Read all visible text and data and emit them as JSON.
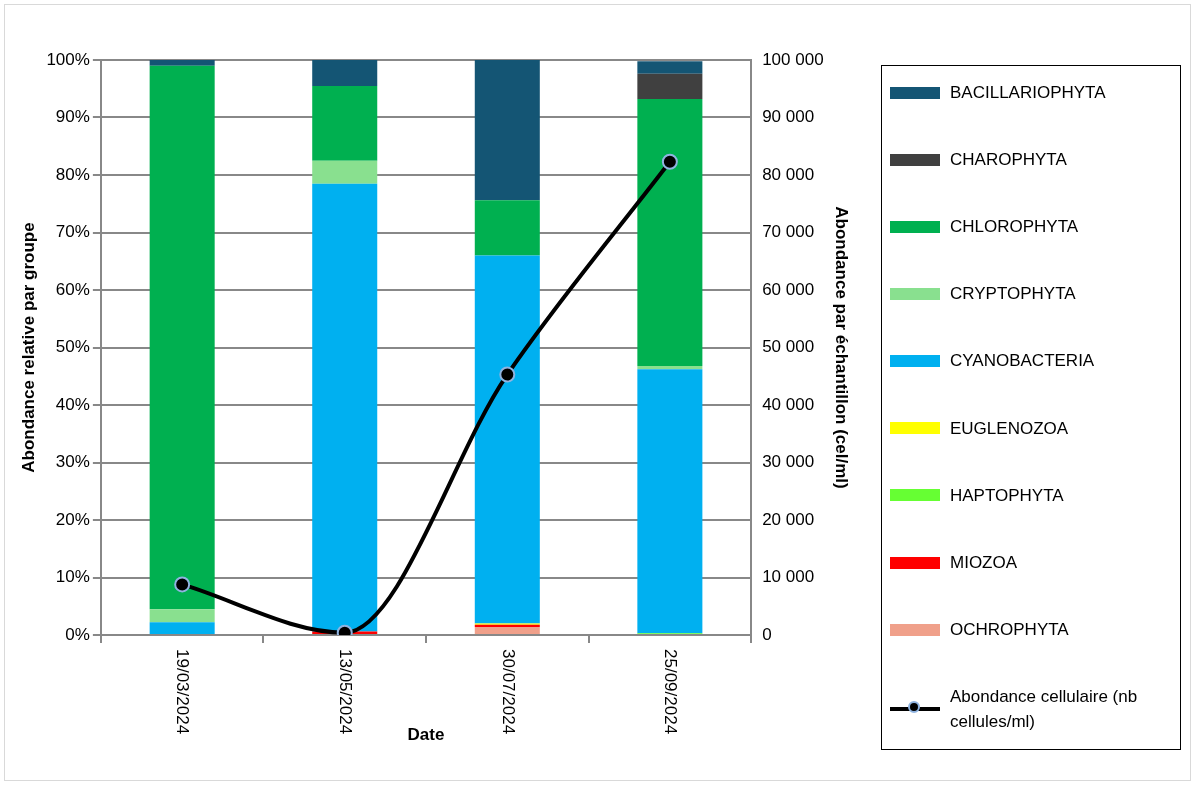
{
  "chart_data": {
    "type": "bar",
    "stacked": true,
    "xlabel": "Date",
    "ylabel": "Abondance relative par groupe",
    "y2label": "Abondance par échantillon (cel/ml)",
    "categories": [
      "19/03/2024",
      "13/05/2024",
      "30/07/2024",
      "25/09/2024"
    ],
    "series": [
      {
        "name": "OCHROPHYTA",
        "color": "#f0a08a",
        "values": [
          0,
          0,
          1.4,
          null
        ]
      },
      {
        "name": "MIOZOA",
        "color": "#ff0000",
        "values": [
          0,
          0.6,
          0.4,
          0
        ]
      },
      {
        "name": "HAPTOPHYTA",
        "color": "#66ff33",
        "values": [
          0,
          0,
          0,
          0.3
        ]
      },
      {
        "name": "EUGLENOZOA",
        "color": "#ffff00",
        "values": [
          0,
          0,
          0.2,
          0
        ]
      },
      {
        "name": "CYANOBACTERIA",
        "color": "#00b0f0",
        "values": [
          2.2,
          77.9,
          64,
          45.9
        ]
      },
      {
        "name": "CRYPTOPHYTA",
        "color": "#89e08f",
        "values": [
          2.3,
          4,
          0,
          0.6
        ]
      },
      {
        "name": "CHLOROPHYTA",
        "color": "#00b050",
        "values": [
          94.5,
          13,
          9.6,
          46.4
        ]
      },
      {
        "name": "CHAROPHYTA",
        "color": "#404040",
        "values": [
          0,
          0,
          0,
          4.4
        ]
      },
      {
        "name": "BACILLARIOPHYTA",
        "color": "#145574",
        "values": [
          1,
          4.5,
          24.4,
          2.2
        ]
      },
      {
        "name": "Abondance cellulaire (nb cellules/ml)",
        "type": "line",
        "axis": "y2",
        "color": "#000000",
        "values": [
          8800,
          400,
          45300,
          82300
        ]
      }
    ],
    "ylim": [
      0,
      100
    ],
    "yticks": [
      {
        "value": 0,
        "label": "0%"
      },
      {
        "value": 10,
        "label": "10%"
      },
      {
        "value": 20,
        "label": "20%"
      },
      {
        "value": 30,
        "label": "30%"
      },
      {
        "value": 40,
        "label": "40%"
      },
      {
        "value": 50,
        "label": "50%"
      },
      {
        "value": 60,
        "label": "60%"
      },
      {
        "value": 70,
        "label": "70%"
      },
      {
        "value": 80,
        "label": "80%"
      },
      {
        "value": 90,
        "label": "90%"
      },
      {
        "value": 100,
        "label": "100%"
      }
    ],
    "y2lim": [
      0,
      100000
    ],
    "y2ticks": [
      0,
      {
        "value": 10000,
        "label": "10 000"
      },
      {
        "value": 20000,
        "label": "20 000"
      },
      {
        "value": 30000,
        "label": "30 000"
      },
      {
        "value": 40000,
        "label": "40 000"
      },
      {
        "value": 50000,
        "label": "50 000"
      },
      {
        "value": 60000,
        "label": "60 000"
      },
      {
        "value": 70000,
        "label": "70 000"
      },
      {
        "value": 80000,
        "label": "80 000"
      },
      {
        "value": 90000,
        "label": "90 000"
      },
      {
        "value": 100000,
        "label": "100 000"
      }
    ],
    "grid": "y",
    "legend": "right",
    "marker": "circle",
    "line_style": "solid"
  }
}
